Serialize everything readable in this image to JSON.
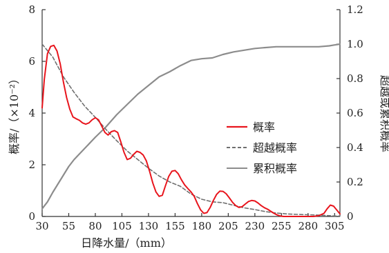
{
  "chart_data": {
    "type": "line",
    "xlabel": "日降水量/（mm）",
    "ylabel": "概率/（×10⁻²）",
    "ylabel_right": "超越或累积概率",
    "x_ticks": [
      "30",
      "55",
      "80",
      "105",
      "130",
      "155",
      "180",
      "205",
      "230",
      "255",
      "280",
      "305"
    ],
    "y_ticks_left": [
      "0",
      "2",
      "4",
      "6",
      "8"
    ],
    "y_ticks_right": [
      "0",
      "0.2",
      "0.4",
      "0.6",
      "0.8",
      "1.0",
      "1.2"
    ],
    "xlim": [
      30,
      310
    ],
    "ylim_left": [
      0,
      8
    ],
    "ylim_right": [
      0,
      1.2
    ],
    "grid": false,
    "legend_position": "center-right",
    "series": [
      {
        "name": "概率",
        "axis": "left",
        "style": "solid",
        "color": "#e8141c",
        "x": [
          30,
          32,
          35,
          38,
          41,
          44,
          47,
          50,
          53,
          56,
          59,
          62,
          65,
          68,
          71,
          74,
          77,
          80,
          83,
          86,
          89,
          92,
          95,
          98,
          101,
          104,
          107,
          110,
          113,
          116,
          119,
          122,
          125,
          128,
          131,
          134,
          137,
          140,
          143,
          146,
          149,
          152,
          155,
          158,
          161,
          164,
          167,
          170,
          173,
          176,
          179,
          182,
          185,
          188,
          191,
          194,
          197,
          200,
          203,
          206,
          209,
          212,
          215,
          218,
          221,
          224,
          227,
          230,
          233,
          236,
          239,
          242,
          245,
          248,
          251,
          254,
          257,
          260,
          263,
          266,
          270,
          275,
          280,
          285,
          290,
          295,
          298,
          301,
          304,
          307,
          310
        ],
        "values": [
          4.2,
          5.3,
          6.3,
          6.58,
          6.62,
          6.4,
          5.9,
          5.2,
          4.6,
          4.15,
          3.85,
          3.78,
          3.72,
          3.62,
          3.57,
          3.62,
          3.74,
          3.82,
          3.74,
          3.5,
          3.25,
          3.15,
          3.28,
          3.32,
          3.25,
          2.88,
          2.48,
          2.2,
          2.25,
          2.4,
          2.52,
          2.48,
          2.38,
          2.15,
          1.75,
          1.3,
          0.95,
          0.78,
          0.82,
          1.2,
          1.55,
          1.75,
          1.78,
          1.65,
          1.42,
          1.22,
          1.08,
          0.95,
          0.78,
          0.5,
          0.25,
          0.12,
          0.15,
          0.35,
          0.62,
          0.85,
          0.98,
          0.97,
          0.88,
          0.72,
          0.55,
          0.42,
          0.35,
          0.38,
          0.48,
          0.58,
          0.62,
          0.6,
          0.52,
          0.42,
          0.34,
          0.28,
          0.2,
          0.12,
          0.06,
          0.02,
          0.0,
          0.0,
          0.0,
          0.0,
          0.0,
          0.0,
          0.0,
          0.0,
          0.03,
          0.12,
          0.3,
          0.44,
          0.4,
          0.25,
          0.1
        ]
      },
      {
        "name": "超越概率",
        "axis": "right",
        "style": "dashed",
        "color": "#6f6f6f",
        "x": [
          30,
          40,
          50,
          60,
          70,
          80,
          90,
          100,
          110,
          120,
          130,
          140,
          150,
          160,
          170,
          180,
          190,
          200,
          210,
          220,
          230,
          240,
          250,
          260,
          270,
          280,
          290,
          300,
          305,
          310
        ],
        "values": [
          1.0,
          0.925,
          0.81,
          0.72,
          0.64,
          0.575,
          0.505,
          0.44,
          0.38,
          0.33,
          0.28,
          0.235,
          0.2,
          0.175,
          0.13,
          0.1,
          0.085,
          0.08,
          0.065,
          0.05,
          0.04,
          0.028,
          0.02,
          0.015,
          0.012,
          0.01,
          0.008,
          0.005,
          0.003,
          0.002
        ]
      },
      {
        "name": "累积概率",
        "axis": "right",
        "style": "solid",
        "color": "#8c8c8c",
        "x": [
          30,
          35,
          40,
          45,
          50,
          55,
          60,
          70,
          80,
          90,
          100,
          110,
          120,
          130,
          140,
          150,
          160,
          170,
          180,
          190,
          200,
          210,
          220,
          230,
          240,
          250,
          260,
          270,
          280,
          290,
          300,
          305,
          310
        ],
        "values": [
          0.045,
          0.085,
          0.14,
          0.19,
          0.24,
          0.29,
          0.33,
          0.395,
          0.46,
          0.52,
          0.59,
          0.65,
          0.71,
          0.76,
          0.81,
          0.84,
          0.875,
          0.905,
          0.915,
          0.92,
          0.94,
          0.955,
          0.965,
          0.975,
          0.98,
          0.985,
          0.985,
          0.985,
          0.985,
          0.985,
          0.99,
          0.995,
          1.0
        ]
      }
    ]
  }
}
